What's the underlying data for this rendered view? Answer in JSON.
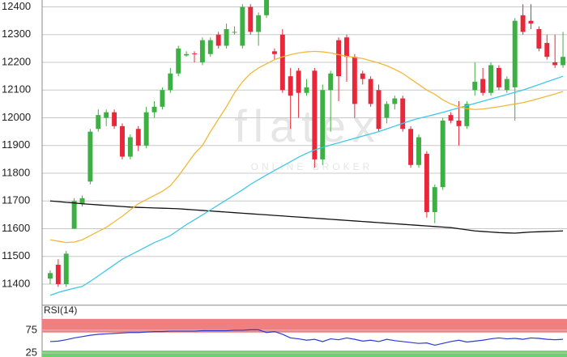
{
  "chart_data": {
    "type": "candlestick",
    "watermark": {
      "logo": "flatex",
      "tagline": "ONLINE BROKER"
    },
    "ylim": [
      11330,
      12425
    ],
    "yticks": [
      11400,
      11500,
      11600,
      11700,
      11800,
      11900,
      12000,
      12100,
      12200,
      12300,
      12400
    ],
    "grid": true,
    "up_color": "#3cb043",
    "down_color": "#e8283a",
    "open": [
      11420,
      11470,
      11400,
      11600,
      11690,
      11770,
      11960,
      12000,
      12020,
      11970,
      11860,
      11960,
      11900,
      12020,
      12040,
      12100,
      12160,
      12225,
      12232,
      12200,
      12230,
      12300,
      12260,
      12310,
      12260,
      12400,
      12310,
      12370,
      12240,
      12300,
      12150,
      12170,
      12090,
      12170,
      11850,
      12100,
      12280,
      12290,
      12220,
      12160,
      12140,
      12100,
      12000,
      12050,
      12070,
      11960,
      11830,
      11870,
      11660,
      11750,
      12010,
      11990,
      11970,
      12100,
      12140,
      12090,
      12180,
      12100,
      12110,
      12370,
      12350,
      12320,
      12270,
      12200,
      12190
    ],
    "high": [
      11450,
      11490,
      11520,
      11710,
      11720,
      11960,
      12030,
      12030,
      12030,
      11980,
      11940,
      11970,
      12040,
      12060,
      12110,
      12180,
      12260,
      12240,
      12240,
      12290,
      12290,
      12310,
      12340,
      12330,
      12410,
      12410,
      12380,
      12450,
      12250,
      12320,
      12180,
      12180,
      12140,
      12180,
      12120,
      12170,
      12290,
      12300,
      12230,
      12170,
      12150,
      12120,
      12060,
      12080,
      12080,
      11970,
      11940,
      11880,
      11760,
      12000,
      12020,
      12060,
      12060,
      12200,
      12180,
      12200,
      12190,
      12150,
      12360,
      12410,
      12410,
      12330,
      12300,
      12300,
      12310
    ],
    "low": [
      11400,
      11390,
      11390,
      11600,
      11680,
      11760,
      11950,
      11970,
      11960,
      11850,
      11850,
      11880,
      11890,
      12000,
      12030,
      12090,
      12150,
      12220,
      12200,
      12190,
      12220,
      12250,
      12250,
      12300,
      12250,
      12300,
      12260,
      12360,
      12210,
      12090,
      11960,
      12000,
      12080,
      11820,
      11830,
      11950,
      12060,
      12130,
      12000,
      12120,
      12040,
      11950,
      11980,
      12030,
      11950,
      11820,
      11820,
      11640,
      11620,
      11740,
      11980,
      11900,
      11960,
      12080,
      12080,
      12080,
      12100,
      12090,
      11990,
      12300,
      12320,
      12240,
      12210,
      12180,
      12180
    ],
    "close": [
      11440,
      11400,
      11510,
      11700,
      11710,
      11950,
      12010,
      12020,
      11970,
      11860,
      11930,
      11900,
      12020,
      12040,
      12100,
      12160,
      12250,
      12230,
      12230,
      12280,
      12280,
      12260,
      12320,
      12310,
      12400,
      12310,
      12370,
      12440,
      12230,
      12100,
      12080,
      12090,
      12110,
      11850,
      12100,
      12160,
      12150,
      12220,
      12050,
      12140,
      12050,
      11960,
      12050,
      12070,
      11960,
      11830,
      11930,
      11660,
      11750,
      11990,
      11990,
      11970,
      12050,
      12130,
      12090,
      12190,
      12110,
      12140,
      12350,
      12310,
      12340,
      12250,
      12220,
      12190,
      12220
    ],
    "moving_averages": [
      {
        "color": "#111111",
        "values": [
          11700,
          11698,
          11695,
          11693,
          11690,
          11688,
          11686,
          11684,
          11682,
          11680,
          11678,
          11677,
          11676,
          11675,
          11674,
          11673,
          11672,
          11670,
          11668,
          11666,
          11664,
          11662,
          11660,
          11658,
          11656,
          11654,
          11652,
          11650,
          11648,
          11646,
          11644,
          11642,
          11640,
          11638,
          11636,
          11634,
          11632,
          11630,
          11628,
          11626,
          11624,
          11622,
          11620,
          11618,
          11616,
          11614,
          11612,
          11610,
          11608,
          11606,
          11604,
          11600,
          11596,
          11592,
          11590,
          11588,
          11586,
          11585,
          11584,
          11586,
          11588,
          11589,
          11590,
          11591,
          11592
        ]
      },
      {
        "color": "#3fc8e8",
        "values": [
          11360,
          11370,
          11378,
          11385,
          11392,
          11410,
          11430,
          11450,
          11470,
          11490,
          11505,
          11520,
          11535,
          11550,
          11562,
          11575,
          11595,
          11615,
          11632,
          11650,
          11668,
          11686,
          11704,
          11722,
          11740,
          11760,
          11777,
          11794,
          11810,
          11826,
          11842,
          11858,
          11872,
          11884,
          11893,
          11902,
          11910,
          11918,
          11926,
          11934,
          11942,
          11950,
          11960,
          11970,
          11980,
          11990,
          11998,
          12005,
          12012,
          12020,
          12028,
          12036,
          12044,
          12052,
          12060,
          12068,
          12076,
          12084,
          12092,
          12100,
          12110,
          12120,
          12130,
          12140,
          12150
        ]
      },
      {
        "color": "#f2b83a",
        "values": [
          11560,
          11555,
          11550,
          11552,
          11560,
          11575,
          11590,
          11605,
          11625,
          11645,
          11668,
          11690,
          11705,
          11720,
          11735,
          11755,
          11790,
          11830,
          11870,
          11900,
          11950,
          11995,
          12040,
          12090,
          12130,
          12160,
          12180,
          12195,
          12210,
          12220,
          12228,
          12234,
          12238,
          12240,
          12238,
          12234,
          12228,
          12222,
          12218,
          12214,
          12206,
          12198,
          12188,
          12175,
          12160,
          12140,
          12120,
          12100,
          12085,
          12065,
          12050,
          12040,
          12033,
          12030,
          12032,
          12036,
          12040,
          12045,
          12050,
          12055,
          12062,
          12070,
          12078,
          12086,
          12095
        ]
      }
    ],
    "indicator": {
      "title": "RSI(14)",
      "color": "#2a3bd6",
      "ylim": [
        16,
        107
      ],
      "yticks": [
        25,
        75
      ],
      "bands": [
        {
          "from": 70,
          "to": 100,
          "color": "#f08080"
        },
        {
          "from": 0,
          "to": 30,
          "color": "#6fce6f"
        }
      ],
      "values": [
        50,
        51,
        54,
        58,
        61,
        64,
        66,
        67,
        68,
        69,
        70,
        70,
        71,
        72,
        72,
        73,
        73,
        73,
        73,
        74,
        74,
        74,
        74,
        75,
        75,
        76,
        76,
        70,
        72,
        66,
        58,
        56,
        53,
        55,
        50,
        56,
        54,
        58,
        55,
        51,
        53,
        50,
        55,
        52,
        50,
        48,
        46,
        47,
        42,
        46,
        50,
        53,
        49,
        51,
        53,
        56,
        58,
        56,
        57,
        55,
        58,
        57,
        55,
        54,
        55
      ]
    }
  }
}
